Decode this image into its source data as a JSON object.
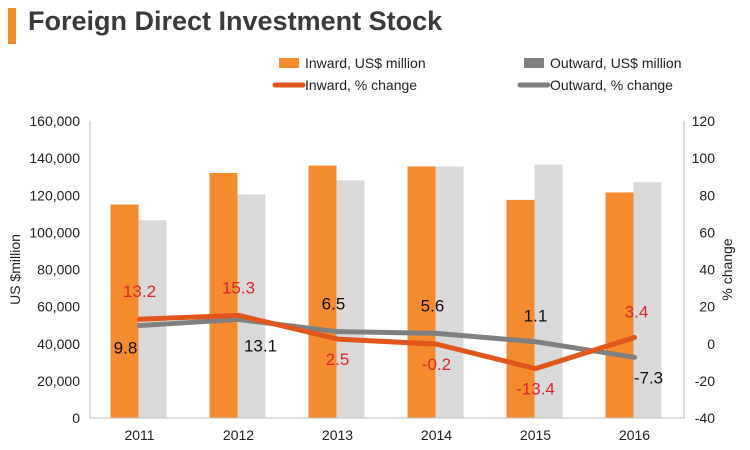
{
  "chart_data": {
    "type": "bar",
    "title": "Foreign Direct Investment Stock",
    "categories": [
      "2011",
      "2012",
      "2013",
      "2014",
      "2015",
      "2016"
    ],
    "series": [
      {
        "name": "Inward, US$ million",
        "kind": "bar",
        "axis": "left",
        "color": "#f58b2f",
        "values": [
          115000,
          132000,
          136000,
          135500,
          117500,
          121500
        ]
      },
      {
        "name": "Outward, US$ million",
        "kind": "bar",
        "axis": "left",
        "color": "#d9d9d9",
        "values": [
          106500,
          120500,
          128000,
          135500,
          136500,
          127000
        ]
      },
      {
        "name": "Inward, % change",
        "kind": "line",
        "axis": "right",
        "color": "#e0561b",
        "values": [
          13.2,
          15.3,
          2.5,
          -0.2,
          -13.4,
          3.4
        ],
        "labels": [
          "13.2",
          "15.3",
          "2.5",
          "-0.2",
          "-13.4",
          "3.4"
        ],
        "label_color": "#d9262c"
      },
      {
        "name": "Outward, % change",
        "kind": "line",
        "axis": "right",
        "color": "#808080",
        "values": [
          9.8,
          13.1,
          6.5,
          5.6,
          1.1,
          -7.3
        ],
        "labels": [
          "9.8",
          "13.1",
          "6.5",
          "5.6",
          "1.1",
          "-7.3"
        ],
        "label_color": "#111111"
      }
    ],
    "legend_swatch_colors": {
      "outward_bar": "#808080"
    },
    "ylabel": "US $million",
    "y2label": "% change",
    "ylim": [
      0,
      160000
    ],
    "y2lim": [
      -40,
      120
    ],
    "yticks": [
      0,
      20000,
      40000,
      60000,
      80000,
      100000,
      120000,
      140000,
      160000
    ],
    "yticklabels": [
      "0",
      "20,000",
      "40,000",
      "60,000",
      "80,000",
      "100,000",
      "120,000",
      "140,000",
      "160,000"
    ],
    "y2ticks": [
      -40,
      -20,
      0,
      20,
      40,
      60,
      80,
      100,
      120
    ],
    "y2ticklabels": [
      "-40",
      "-20",
      "0",
      "20",
      "40",
      "60",
      "80",
      "100",
      "120"
    ],
    "legend": "top",
    "grid": false
  },
  "title_bar_color": "#f58b2f"
}
